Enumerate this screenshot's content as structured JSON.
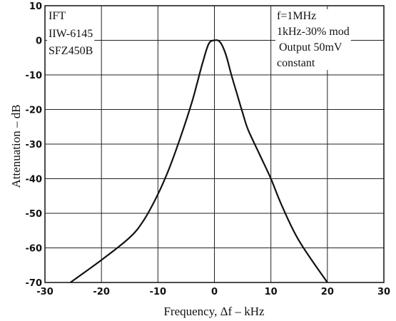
{
  "chart_data": {
    "type": "line",
    "xlabel": "Frequency, Δf  –  kHz",
    "ylabel": "Attenuation  –  dB",
    "xlim": [
      -30,
      30
    ],
    "ylim": [
      -70,
      10
    ],
    "x_ticks": [
      "-30",
      "-20",
      "-10",
      "0",
      "10",
      "20",
      "30"
    ],
    "y_ticks": [
      "10",
      "0",
      "-10",
      "-20",
      "-30",
      "-40",
      "-50",
      "-60",
      "-70"
    ],
    "grid": true,
    "legend": [
      "IFT",
      "IIW-6145",
      "SFZ450B"
    ],
    "annotations": [
      "f=1MHz",
      "1kHz-30% mod",
      "Output 50mV",
      "constant"
    ],
    "series": [
      {
        "x": [
          -25.5,
          -20,
          -15,
          -12.5,
          -10,
          -8,
          -6,
          -4,
          -3,
          -2,
          -1,
          0,
          1,
          2,
          3,
          4,
          5,
          6,
          8,
          10,
          12,
          15,
          20
        ],
        "y": [
          -70,
          -63.5,
          -57,
          -52,
          -44.5,
          -37,
          -28,
          -18,
          -12,
          -6,
          -1,
          0,
          -0.5,
          -4,
          -10,
          -15.5,
          -21,
          -26,
          -33,
          -40,
          -48,
          -58,
          -70
        ]
      }
    ]
  }
}
